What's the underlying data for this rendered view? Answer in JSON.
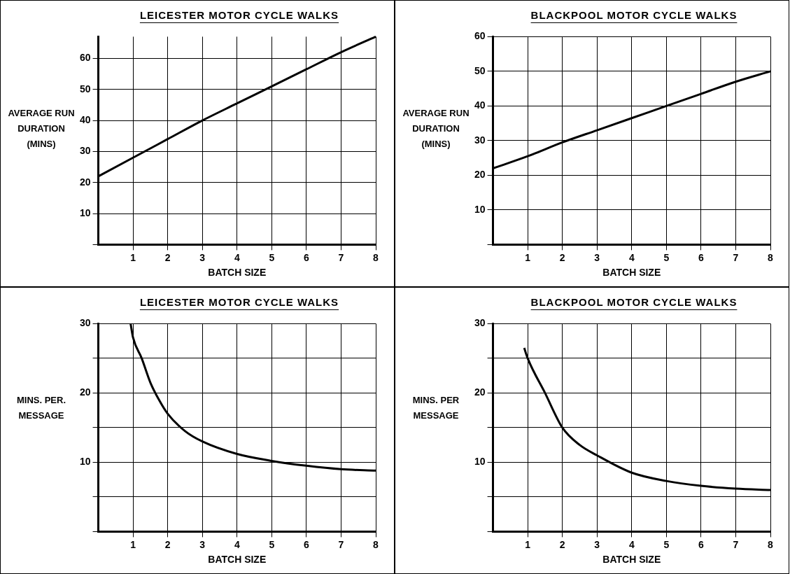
{
  "chart_data": [
    {
      "type": "line",
      "title": "LEICESTER MOTOR CYCLE WALKS",
      "xlabel": "BATCH SIZE",
      "ylabel": "AVERAGE RUN DURATION (MINS)",
      "x": [
        0,
        1,
        2,
        3,
        4,
        5,
        6,
        7,
        8
      ],
      "values": [
        22,
        28,
        34,
        40,
        45.5,
        51,
        56.5,
        62,
        67
      ],
      "color": "#000000",
      "xlim": [
        0,
        8
      ],
      "xticks": [
        1,
        2,
        3,
        4,
        5,
        6,
        7,
        8
      ],
      "ylim": [
        0,
        67
      ],
      "yticks": [
        {
          "value": 0,
          "label": null
        },
        10,
        20,
        30,
        40,
        50,
        60
      ],
      "grid": true,
      "marker": "none",
      "line_style": "solid",
      "legend": false
    },
    {
      "type": "line",
      "title": "BLACKPOOL MOTOR CYCLE WALKS",
      "xlabel": "BATCH SIZE",
      "ylabel": "AVERAGE RUN DURATION (MINS)",
      "x": [
        0,
        1,
        2,
        3,
        4,
        5,
        6,
        7,
        8
      ],
      "values": [
        22,
        25.5,
        29.5,
        33,
        36.5,
        40,
        43.5,
        47,
        50
      ],
      "color": "#000000",
      "xlim": [
        0,
        8
      ],
      "xticks": [
        1,
        2,
        3,
        4,
        5,
        6,
        7,
        8
      ],
      "ylim": [
        0,
        60
      ],
      "yticks": [
        {
          "value": 0,
          "label": null
        },
        10,
        20,
        30,
        40,
        50,
        60
      ],
      "grid": true,
      "marker": "none",
      "line_style": "solid",
      "legend": false
    },
    {
      "type": "line",
      "title": "LEICESTER MOTOR CYCLE WALKS",
      "xlabel": "BATCH SIZE",
      "ylabel": "MINS. PER. MESSAGE",
      "x": [
        0.93,
        1,
        1.25,
        1.5,
        1.75,
        2,
        2.5,
        3,
        4,
        5,
        6,
        7,
        8
      ],
      "values": [
        30,
        28,
        25,
        21.5,
        19,
        17,
        14.5,
        13,
        11.2,
        10.2,
        9.5,
        9,
        8.8
      ],
      "color": "#000000",
      "xlim": [
        0,
        8
      ],
      "xticks": [
        1,
        2,
        3,
        4,
        5,
        6,
        7,
        8
      ],
      "ylim": [
        0,
        30
      ],
      "yticks": [
        {
          "value": 0,
          "label": null
        },
        {
          "value": 5,
          "label": null
        },
        10,
        {
          "value": 15,
          "label": null
        },
        20,
        {
          "value": 25,
          "label": null
        },
        30
      ],
      "grid": true,
      "marker": "none",
      "line_style": "solid",
      "legend": false
    },
    {
      "type": "line",
      "title": "BLACKPOOL MOTOR CYCLE WALKS",
      "xlabel": "BATCH SIZE",
      "ylabel": "MINS. PER MESSAGE",
      "x": [
        0.9,
        1,
        1.5,
        2,
        2.5,
        3,
        4,
        5,
        6,
        7,
        8
      ],
      "values": [
        26.5,
        25,
        20,
        15,
        12.5,
        11,
        8.5,
        7.3,
        6.6,
        6.2,
        6
      ],
      "color": "#000000",
      "xlim": [
        0,
        8
      ],
      "xticks": [
        1,
        2,
        3,
        4,
        5,
        6,
        7,
        8
      ],
      "ylim": [
        0,
        30
      ],
      "yticks": [
        {
          "value": 0,
          "label": null
        },
        {
          "value": 5,
          "label": null
        },
        10,
        {
          "value": 15,
          "label": null
        },
        20,
        {
          "value": 25,
          "label": null
        },
        30
      ],
      "grid": true,
      "marker": "none",
      "line_style": "solid",
      "legend": false
    }
  ]
}
